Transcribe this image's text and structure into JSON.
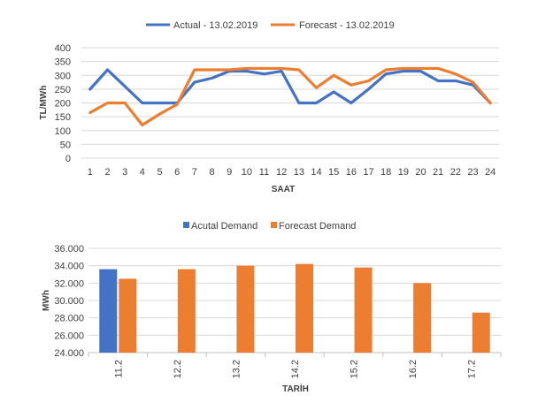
{
  "chart_data": [
    {
      "type": "line",
      "title": "",
      "xlabel": "SAAT",
      "ylabel": "TL/MWh",
      "ylim": [
        0,
        400
      ],
      "yticks": [
        0,
        50,
        100,
        150,
        200,
        250,
        300,
        350,
        400
      ],
      "x": [
        1,
        2,
        3,
        4,
        5,
        6,
        7,
        8,
        9,
        10,
        11,
        12,
        13,
        14,
        15,
        16,
        17,
        18,
        19,
        20,
        21,
        22,
        23,
        24
      ],
      "legend_position": "top-center",
      "series": [
        {
          "name": "Actual - 13.02.2019",
          "color": "#4472C4",
          "values": [
            250,
            320,
            260,
            200,
            200,
            200,
            275,
            290,
            315,
            315,
            305,
            315,
            200,
            200,
            240,
            200,
            250,
            305,
            315,
            315,
            280,
            280,
            265,
            200
          ]
        },
        {
          "name": "Forecast - 13.02.2019",
          "color": "#ED7D31",
          "values": [
            165,
            200,
            200,
            120,
            160,
            195,
            320,
            320,
            320,
            325,
            325,
            325,
            320,
            255,
            300,
            265,
            280,
            320,
            325,
            325,
            325,
            305,
            275,
            200
          ]
        }
      ]
    },
    {
      "type": "bar",
      "title": "",
      "xlabel": "TARİH",
      "ylabel": "MWh",
      "ylim": [
        24000,
        36000
      ],
      "yticks": [
        "24.000",
        "26.000",
        "28.000",
        "30.000",
        "32.000",
        "34.000",
        "36.000"
      ],
      "ytick_values": [
        24000,
        26000,
        28000,
        30000,
        32000,
        34000,
        36000
      ],
      "categories": [
        "11.2",
        "12.2",
        "13.2",
        "14.2",
        "15.2",
        "16.2",
        "17.2"
      ],
      "legend_position": "top-center",
      "series": [
        {
          "name": "Acutal Demand",
          "color": "#4472C4",
          "values": [
            33600,
            null,
            null,
            null,
            null,
            null,
            null
          ]
        },
        {
          "name": "Forecast Demand",
          "color": "#ED7D31",
          "values": [
            32500,
            33600,
            34000,
            34200,
            33800,
            32000,
            28600
          ]
        }
      ]
    }
  ]
}
